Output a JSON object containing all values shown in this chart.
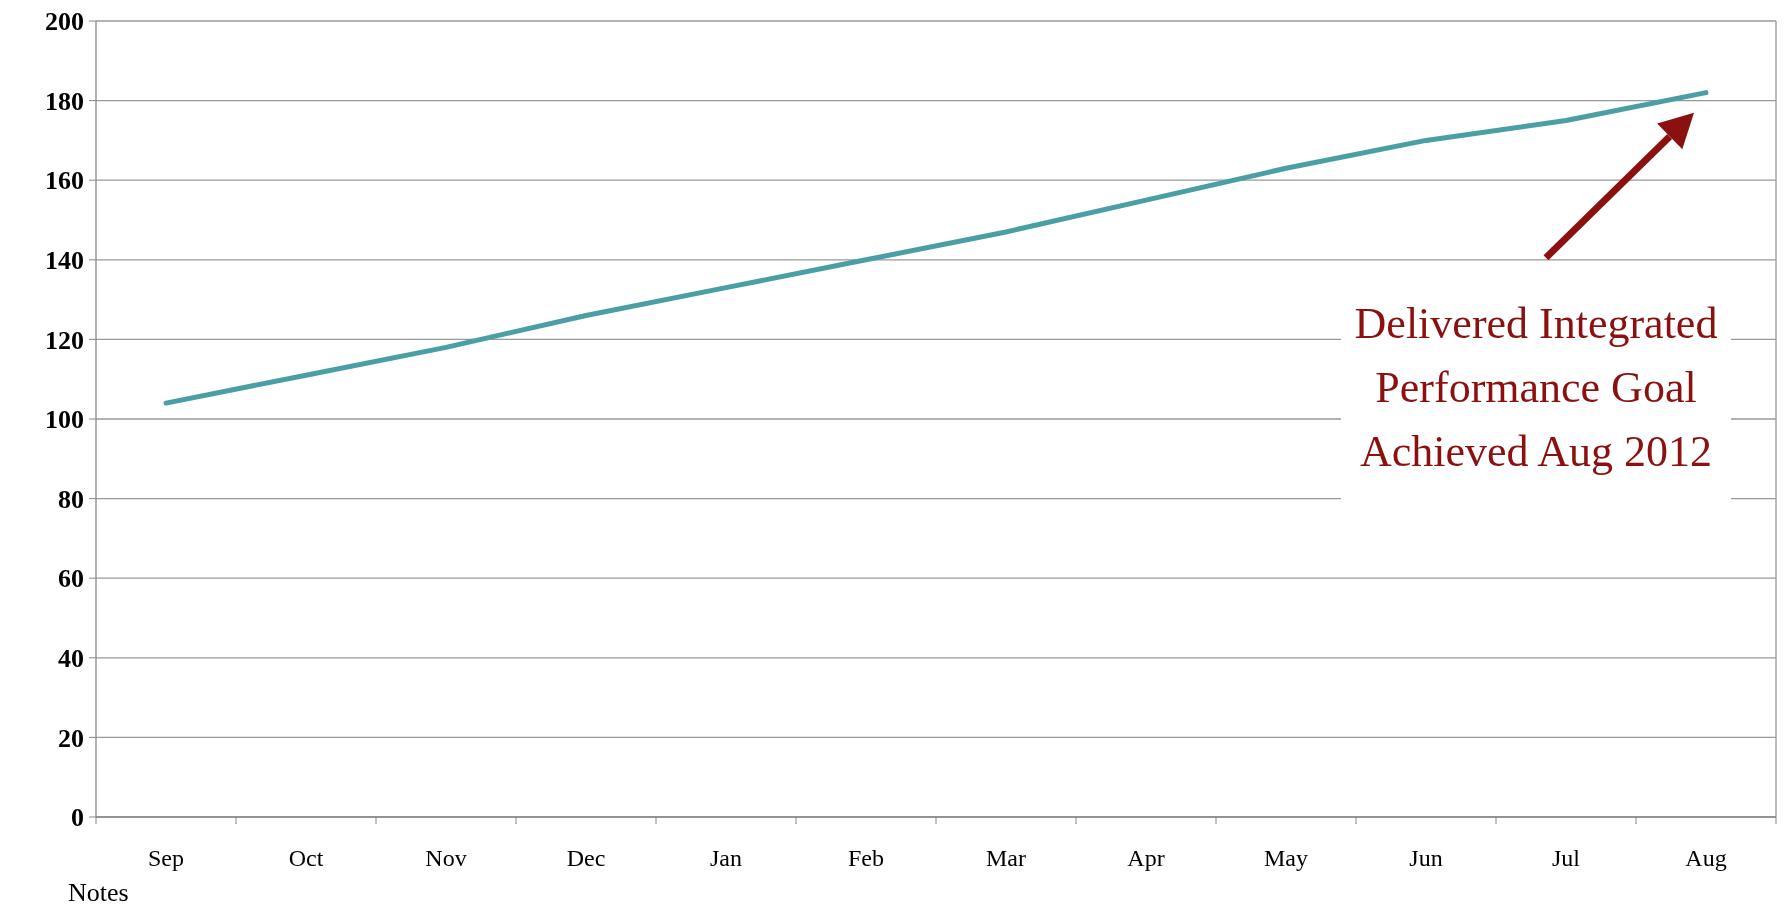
{
  "chart_data": {
    "type": "line",
    "categories": [
      "Sep",
      "Oct",
      "Nov",
      "Dec",
      "Jan",
      "Feb",
      "Mar",
      "Apr",
      "May",
      "Jun",
      "Jul",
      "Aug"
    ],
    "series": [
      {
        "color": "#4a9fa5",
        "values": [
          104,
          111,
          118,
          126,
          133,
          140,
          147,
          155,
          163,
          170,
          175,
          182
        ]
      }
    ],
    "ylim": [
      0,
      200
    ],
    "yticks": [
      0,
      20,
      40,
      60,
      80,
      100,
      120,
      140,
      160,
      180,
      200
    ],
    "grid": "y",
    "marker": "none",
    "line_style": "solid",
    "annotations": [
      "Delivered Integrated\nPerformance Goal\nAchieved Aug 2012",
      "Notes"
    ]
  }
}
